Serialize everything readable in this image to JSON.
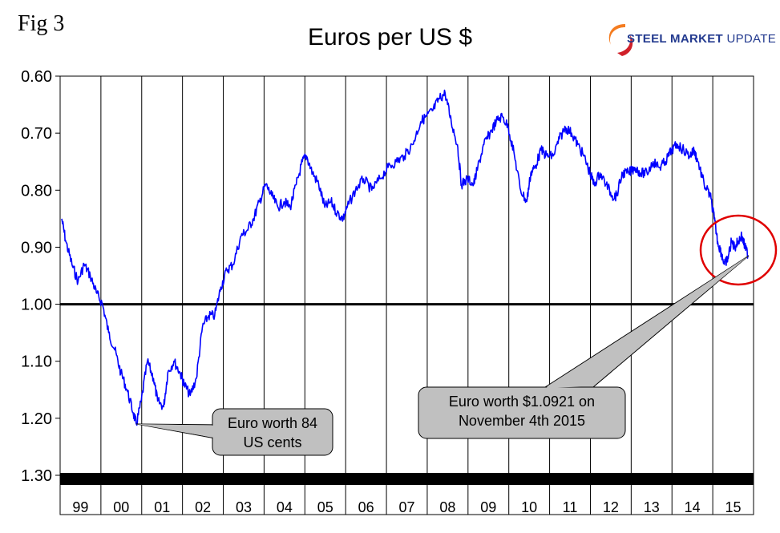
{
  "figure_label": "Fig 3",
  "logo": {
    "bold": "STEEL MARKET",
    "light": "UPDATE"
  },
  "chart_data": {
    "type": "line",
    "title": "Euros per US $",
    "xlabel": "",
    "ylabel": "",
    "y_inverted": true,
    "ylim": [
      0.6,
      1.3
    ],
    "y_ticks": [
      "0.60",
      "0.70",
      "0.80",
      "0.90",
      "1.00",
      "1.10",
      "1.20",
      "1.30"
    ],
    "reference_line": 1.0,
    "categories": [
      "99",
      "00",
      "01",
      "02",
      "03",
      "04",
      "05",
      "06",
      "07",
      "08",
      "09",
      "10",
      "11",
      "12",
      "13",
      "14",
      "15"
    ],
    "grid": "vertical",
    "series": [
      {
        "color": "#0000ff",
        "x": [
          1999.0,
          1999.1,
          1999.25,
          1999.4,
          1999.55,
          1999.7,
          1999.85,
          2000.0,
          2000.15,
          2000.3,
          2000.45,
          2000.6,
          2000.75,
          2000.83,
          2000.95,
          2001.1,
          2001.25,
          2001.35,
          2001.5,
          2001.6,
          2001.75,
          2001.9,
          2002.0,
          2002.15,
          2002.3,
          2002.45,
          2002.6,
          2002.75,
          2002.9,
          2003.05,
          2003.2,
          2003.4,
          2003.55,
          2003.7,
          2003.85,
          2004.0,
          2004.15,
          2004.3,
          2004.45,
          2004.6,
          2004.75,
          2004.9,
          2005.0,
          2005.15,
          2005.3,
          2005.45,
          2005.6,
          2005.75,
          2005.9,
          2006.0,
          2006.2,
          2006.4,
          2006.6,
          2006.8,
          2007.0,
          2007.2,
          2007.4,
          2007.6,
          2007.8,
          2007.95,
          2008.1,
          2008.25,
          2008.4,
          2008.55,
          2008.7,
          2008.8,
          2008.95,
          2009.1,
          2009.2,
          2009.35,
          2009.5,
          2009.65,
          2009.8,
          2009.95,
          2010.1,
          2010.25,
          2010.4,
          2010.5,
          2010.6,
          2010.75,
          2010.9,
          2011.05,
          2011.2,
          2011.35,
          2011.5,
          2011.65,
          2011.8,
          2011.95,
          2012.05,
          2012.2,
          2012.35,
          2012.5,
          2012.6,
          2012.75,
          2012.9,
          2013.05,
          2013.2,
          2013.35,
          2013.5,
          2013.65,
          2013.8,
          2013.95,
          2014.1,
          2014.25,
          2014.4,
          2014.5,
          2014.6,
          2014.75,
          2014.9,
          2015.0,
          2015.08,
          2015.17,
          2015.25,
          2015.33,
          2015.42,
          2015.5,
          2015.58,
          2015.67,
          2015.75,
          2015.84
        ],
        "y": [
          0.85,
          0.89,
          0.93,
          0.96,
          0.93,
          0.95,
          0.98,
          1.0,
          1.05,
          1.08,
          1.12,
          1.15,
          1.19,
          1.21,
          1.17,
          1.1,
          1.13,
          1.17,
          1.18,
          1.12,
          1.1,
          1.12,
          1.14,
          1.16,
          1.13,
          1.04,
          1.02,
          1.02,
          0.97,
          0.94,
          0.93,
          0.88,
          0.87,
          0.85,
          0.82,
          0.79,
          0.81,
          0.83,
          0.82,
          0.83,
          0.79,
          0.75,
          0.74,
          0.77,
          0.79,
          0.83,
          0.82,
          0.84,
          0.85,
          0.83,
          0.8,
          0.78,
          0.8,
          0.78,
          0.76,
          0.75,
          0.74,
          0.72,
          0.68,
          0.67,
          0.66,
          0.64,
          0.63,
          0.68,
          0.72,
          0.79,
          0.78,
          0.79,
          0.76,
          0.72,
          0.7,
          0.68,
          0.67,
          0.69,
          0.74,
          0.8,
          0.82,
          0.77,
          0.76,
          0.73,
          0.74,
          0.74,
          0.71,
          0.69,
          0.7,
          0.72,
          0.74,
          0.77,
          0.79,
          0.77,
          0.79,
          0.81,
          0.81,
          0.77,
          0.77,
          0.76,
          0.77,
          0.77,
          0.75,
          0.76,
          0.75,
          0.73,
          0.72,
          0.73,
          0.74,
          0.73,
          0.75,
          0.79,
          0.81,
          0.85,
          0.89,
          0.91,
          0.93,
          0.92,
          0.89,
          0.9,
          0.89,
          0.88,
          0.9,
          0.915
        ]
      }
    ],
    "annotations": [
      {
        "text_lines": [
          "Euro worth 84",
          "US cents"
        ],
        "target": [
          2000.83,
          1.21
        ]
      },
      {
        "text_lines": [
          "Euro worth $1.0921 on",
          "November 4th 2015"
        ],
        "target": [
          2015.84,
          0.915
        ],
        "circled": true
      }
    ]
  }
}
